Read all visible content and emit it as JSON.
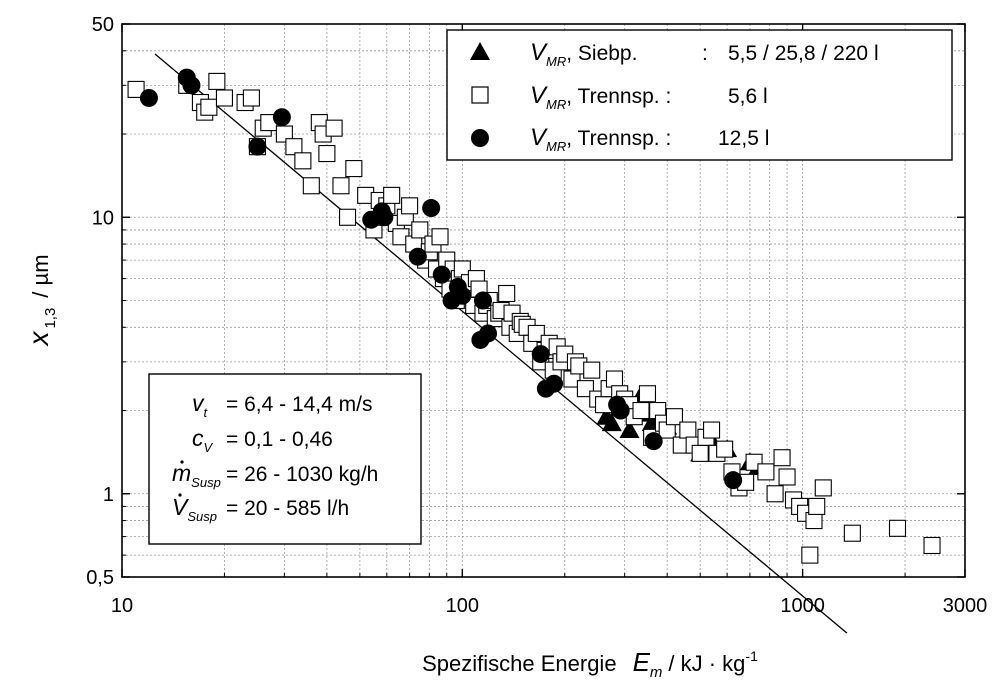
{
  "chart_data": {
    "type": "scatter",
    "x_scale": "log",
    "y_scale": "log",
    "xlim": [
      10,
      3000
    ],
    "ylim": [
      0.5,
      50
    ],
    "grid": true,
    "x_ticks": [
      {
        "value": 10,
        "label": "10"
      },
      {
        "value": 100,
        "label": "100"
      },
      {
        "value": 1000,
        "label": "1000"
      },
      {
        "value": 3000,
        "label": "3000"
      }
    ],
    "y_ticks": [
      {
        "value": 0.5,
        "label": "0,5"
      },
      {
        "value": 1,
        "label": "1"
      },
      {
        "value": 10,
        "label": "10"
      },
      {
        "value": 50,
        "label": "50"
      }
    ],
    "xlabel": {
      "text": "Spezifische Energie",
      "symbol": "E",
      "subscript": "m",
      "unit": "/ kJ · kg",
      "sup": "-1"
    },
    "ylabel": {
      "symbol": "x",
      "subscript": "1,3",
      "unit": "/ µm"
    },
    "legend_position": "top-right",
    "series": [
      {
        "name": "V_MR, Siebp. : 5,5 / 25,8 / 220 l",
        "legend": {
          "symbol": "V",
          "sub": "MR",
          "rest": ", Siebp.",
          "colon": ":",
          "value": "5,5 / 25,8 / 220 l"
        },
        "marker": "triangle-filled",
        "points": [
          [
            265,
            1.9
          ],
          [
            275,
            1.8
          ],
          [
            290,
            2.05
          ],
          [
            310,
            1.7
          ],
          [
            330,
            2.2
          ],
          [
            345,
            1.95
          ],
          [
            360,
            1.8
          ],
          [
            400,
            1.75
          ],
          [
            450,
            1.6
          ],
          [
            500,
            1.4
          ],
          [
            550,
            1.5
          ],
          [
            600,
            1.45
          ],
          [
            700,
            1.3
          ],
          [
            740,
            1.25
          ]
        ]
      },
      {
        "name": "V_MR, Trennsp. : 5,6 l",
        "legend": {
          "symbol": "V",
          "sub": "MR",
          "rest": ", Trennsp. :",
          "colon": "",
          "value": "5,6 l"
        },
        "marker": "square-open",
        "points": [
          [
            11,
            29
          ],
          [
            15.5,
            30
          ],
          [
            17,
            26
          ],
          [
            17.5,
            24
          ],
          [
            18,
            25
          ],
          [
            19,
            31
          ],
          [
            20,
            27
          ],
          [
            23,
            26
          ],
          [
            24,
            27
          ],
          [
            25,
            18
          ],
          [
            26,
            21
          ],
          [
            27,
            22
          ],
          [
            30,
            20
          ],
          [
            32,
            18
          ],
          [
            34,
            16
          ],
          [
            36,
            13
          ],
          [
            38,
            22
          ],
          [
            39,
            20
          ],
          [
            40,
            17
          ],
          [
            42,
            21
          ],
          [
            44,
            13
          ],
          [
            46,
            10
          ],
          [
            48,
            15
          ],
          [
            52,
            12
          ],
          [
            55,
            9
          ],
          [
            57,
            11.5
          ],
          [
            58,
            10
          ],
          [
            60,
            11
          ],
          [
            62,
            12
          ],
          [
            64,
            9.5
          ],
          [
            66,
            8.5
          ],
          [
            68,
            10
          ],
          [
            70,
            11
          ],
          [
            72,
            8
          ],
          [
            75,
            9
          ],
          [
            78,
            7
          ],
          [
            80,
            7.5
          ],
          [
            82,
            8
          ],
          [
            84,
            6.5
          ],
          [
            86,
            8.5
          ],
          [
            88,
            6
          ],
          [
            90,
            7
          ],
          [
            92,
            5.5
          ],
          [
            94,
            6.5
          ],
          [
            96,
            5
          ],
          [
            98,
            6
          ],
          [
            100,
            6.5
          ],
          [
            102,
            5.2
          ],
          [
            105,
            5.8
          ],
          [
            108,
            4.8
          ],
          [
            110,
            6
          ],
          [
            112,
            5.5
          ],
          [
            115,
            4.5
          ],
          [
            118,
            4.8
          ],
          [
            120,
            5
          ],
          [
            125,
            4.3
          ],
          [
            128,
            4.5
          ],
          [
            130,
            4.6
          ],
          [
            135,
            5.3
          ],
          [
            138,
            4
          ],
          [
            140,
            4.5
          ],
          [
            145,
            3.8
          ],
          [
            148,
            4.2
          ],
          [
            150,
            4.1
          ],
          [
            155,
            4
          ],
          [
            160,
            3.5
          ],
          [
            165,
            3.8
          ],
          [
            170,
            3
          ],
          [
            175,
            3.3
          ],
          [
            180,
            3.5
          ],
          [
            185,
            2.8
          ],
          [
            190,
            3.4
          ],
          [
            195,
            3
          ],
          [
            200,
            3.2
          ],
          [
            210,
            2.6
          ],
          [
            215,
            3
          ],
          [
            220,
            2.9
          ],
          [
            230,
            2.4
          ],
          [
            240,
            2.8
          ],
          [
            250,
            2.2
          ],
          [
            260,
            2.1
          ],
          [
            270,
            2.4
          ],
          [
            280,
            2.6
          ],
          [
            290,
            2.3
          ],
          [
            300,
            2.2
          ],
          [
            310,
            2.1
          ],
          [
            320,
            1.9
          ],
          [
            335,
            2
          ],
          [
            350,
            2.3
          ],
          [
            360,
            1.6
          ],
          [
            375,
            2
          ],
          [
            390,
            1.8
          ],
          [
            400,
            1.7
          ],
          [
            420,
            1.9
          ],
          [
            440,
            1.5
          ],
          [
            460,
            1.7
          ],
          [
            480,
            1.5
          ],
          [
            500,
            1.4
          ],
          [
            520,
            1.6
          ],
          [
            540,
            1.7
          ],
          [
            560,
            1.4
          ],
          [
            590,
            1.45
          ],
          [
            620,
            1.2
          ],
          [
            650,
            1.05
          ],
          [
            680,
            1.1
          ],
          [
            720,
            1.3
          ],
          [
            780,
            1.2
          ],
          [
            830,
            1.0
          ],
          [
            870,
            1.35
          ],
          [
            900,
            1.15
          ],
          [
            940,
            0.95
          ],
          [
            980,
            0.9
          ],
          [
            1020,
            0.85
          ],
          [
            1050,
            0.6
          ],
          [
            1080,
            0.8
          ],
          [
            1100,
            0.9
          ],
          [
            1150,
            1.05
          ],
          [
            1400,
            0.72
          ],
          [
            1900,
            0.75
          ],
          [
            2400,
            0.65
          ]
        ]
      },
      {
        "name": "V_MR, Trennsp. : 12,5 l",
        "legend": {
          "symbol": "V",
          "sub": "MR",
          "rest": ", Trennsp. :",
          "colon": "",
          "value": "12,5 l"
        },
        "marker": "circle-filled",
        "points": [
          [
            12,
            27
          ],
          [
            15.5,
            32
          ],
          [
            16,
            30
          ],
          [
            25,
            18
          ],
          [
            29.5,
            23
          ],
          [
            54,
            9.8
          ],
          [
            58,
            10.5
          ],
          [
            59,
            10
          ],
          [
            74,
            7.2
          ],
          [
            81,
            10.8
          ],
          [
            87,
            6.2
          ],
          [
            93,
            5
          ],
          [
            97,
            5.6
          ],
          [
            100,
            5.2
          ],
          [
            113,
            3.6
          ],
          [
            115,
            5
          ],
          [
            119,
            3.8
          ],
          [
            170,
            3.2
          ],
          [
            176,
            2.4
          ],
          [
            186,
            2.5
          ],
          [
            285,
            2.1
          ],
          [
            292,
            2.0
          ],
          [
            365,
            1.55
          ],
          [
            625,
            1.12
          ]
        ]
      }
    ],
    "fit_line": {
      "x_start": 12.5,
      "x_end": 1350,
      "coefficient": 525,
      "exponent": -1.03
    }
  },
  "parameters_box": {
    "rows": [
      {
        "symbol": "v",
        "sub": "t",
        "text": "= 6,4 - 14,4 m/s",
        "accent": ""
      },
      {
        "symbol": "c",
        "sub": "V",
        "text": "= 0,1 - 0,46",
        "accent": ""
      },
      {
        "symbol": "m",
        "sub": "Susp",
        "text": "= 26 - 1030 kg/h",
        "accent": "dot"
      },
      {
        "symbol": "V",
        "sub": "Susp",
        "text": "= 20 - 585 l/h",
        "accent": "dot"
      }
    ]
  }
}
